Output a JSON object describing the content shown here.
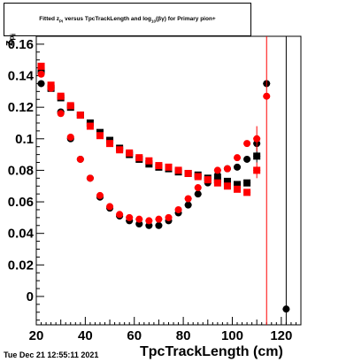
{
  "title": {
    "pre": "Fitted  z",
    "sub1": "Pi",
    "mid": "  versus TpcTrackLength and log",
    "sub2": "10",
    "post": "(βγ) for Primary pion+"
  },
  "footer": "Tue Dec 21 12:55:11 2021",
  "chart_data": {
    "type": "scatter",
    "xlabel": "TpcTrackLength (cm)",
    "ylabel_main": "z",
    "ylabel_sub": "Pi",
    "xlim": [
      20,
      128
    ],
    "ylim": [
      -0.018,
      0.165
    ],
    "xticks": [
      20,
      40,
      60,
      80,
      100,
      120
    ],
    "xtick_labels": [
      "20",
      "40",
      "60",
      "80",
      "100",
      "120"
    ],
    "yticks": [
      0,
      0.02,
      0.04,
      0.06,
      0.08,
      0.1,
      0.12,
      0.14,
      0.16
    ],
    "ytick_labels": [
      "0",
      "0.02",
      "0.04",
      "0.06",
      "0.08",
      "0.1",
      "0.12",
      "0.14",
      "0.16"
    ],
    "series": [
      {
        "color": "#000000",
        "marker": "square",
        "points": [
          {
            "x": 22,
            "y": 0.143,
            "err": 0.002
          },
          {
            "x": 26,
            "y": 0.132,
            "err": 0.002
          },
          {
            "x": 30,
            "y": 0.126,
            "err": 0.001
          },
          {
            "x": 34,
            "y": 0.12,
            "err": 0.001
          },
          {
            "x": 38,
            "y": 0.115,
            "err": 0.001
          },
          {
            "x": 42,
            "y": 0.11,
            "err": 0.001
          },
          {
            "x": 46,
            "y": 0.104,
            "err": 0.001
          },
          {
            "x": 50,
            "y": 0.099,
            "err": 0.001
          },
          {
            "x": 54,
            "y": 0.094,
            "err": 0.001
          },
          {
            "x": 58,
            "y": 0.09,
            "err": 0.001
          },
          {
            "x": 62,
            "y": 0.087,
            "err": 0.001
          },
          {
            "x": 66,
            "y": 0.084,
            "err": 0.001
          },
          {
            "x": 70,
            "y": 0.082,
            "err": 0.001
          },
          {
            "x": 74,
            "y": 0.081,
            "err": 0.001
          },
          {
            "x": 78,
            "y": 0.079,
            "err": 0.001
          },
          {
            "x": 82,
            "y": 0.078,
            "err": 0.001
          },
          {
            "x": 86,
            "y": 0.077,
            "err": 0.001
          },
          {
            "x": 90,
            "y": 0.075,
            "err": 0.001
          },
          {
            "x": 94,
            "y": 0.074,
            "err": 0.001
          },
          {
            "x": 98,
            "y": 0.073,
            "err": 0.001
          },
          {
            "x": 102,
            "y": 0.071,
            "err": 0.001
          },
          {
            "x": 106,
            "y": 0.072,
            "err": 0.002
          },
          {
            "x": 110,
            "y": 0.089,
            "err": 0.004
          }
        ]
      },
      {
        "color": "#000000",
        "marker": "circle",
        "points": [
          {
            "x": 22,
            "y": 0.135,
            "err": 0.002
          },
          {
            "x": 26,
            "y": 0.133,
            "err": 0.002
          },
          {
            "x": 30,
            "y": 0.117,
            "err": 0.001
          },
          {
            "x": 34,
            "y": 0.1,
            "err": 0.001
          },
          {
            "x": 38,
            "y": 0.087,
            "err": 0.001
          },
          {
            "x": 42,
            "y": 0.075,
            "err": 0.001
          },
          {
            "x": 46,
            "y": 0.063,
            "err": 0.001
          },
          {
            "x": 50,
            "y": 0.056,
            "err": 0.001
          },
          {
            "x": 54,
            "y": 0.051,
            "err": 0.001
          },
          {
            "x": 58,
            "y": 0.048,
            "err": 0.001
          },
          {
            "x": 62,
            "y": 0.046,
            "err": 0.001
          },
          {
            "x": 66,
            "y": 0.045,
            "err": 0.001
          },
          {
            "x": 70,
            "y": 0.045,
            "err": 0.001
          },
          {
            "x": 74,
            "y": 0.048,
            "err": 0.001
          },
          {
            "x": 78,
            "y": 0.053,
            "err": 0.001
          },
          {
            "x": 82,
            "y": 0.058,
            "err": 0.001
          },
          {
            "x": 86,
            "y": 0.065,
            "err": 0.001
          },
          {
            "x": 90,
            "y": 0.072,
            "err": 0.001
          },
          {
            "x": 94,
            "y": 0.077,
            "err": 0.001
          },
          {
            "x": 98,
            "y": 0.081,
            "err": 0.001
          },
          {
            "x": 102,
            "y": 0.082,
            "err": 0.002
          },
          {
            "x": 106,
            "y": 0.087,
            "err": 0.002
          },
          {
            "x": 110,
            "y": 0.097,
            "err": 0.004
          },
          {
            "x": 114,
            "y": 0.135,
            "err": 0.002
          },
          {
            "x": 122,
            "y": -0.008,
            "err": 0.175
          }
        ]
      },
      {
        "color": "#ff0000",
        "marker": "square",
        "points": [
          {
            "x": 22,
            "y": 0.146,
            "err": 0.002
          },
          {
            "x": 26,
            "y": 0.134,
            "err": 0.002
          },
          {
            "x": 30,
            "y": 0.127,
            "err": 0.001
          },
          {
            "x": 34,
            "y": 0.121,
            "err": 0.001
          },
          {
            "x": 38,
            "y": 0.115,
            "err": 0.001
          },
          {
            "x": 42,
            "y": 0.108,
            "err": 0.001
          },
          {
            "x": 46,
            "y": 0.102,
            "err": 0.001
          },
          {
            "x": 50,
            "y": 0.097,
            "err": 0.001
          },
          {
            "x": 54,
            "y": 0.093,
            "err": 0.001
          },
          {
            "x": 58,
            "y": 0.091,
            "err": 0.001
          },
          {
            "x": 62,
            "y": 0.088,
            "err": 0.001
          },
          {
            "x": 66,
            "y": 0.086,
            "err": 0.001
          },
          {
            "x": 70,
            "y": 0.083,
            "err": 0.001
          },
          {
            "x": 74,
            "y": 0.082,
            "err": 0.001
          },
          {
            "x": 78,
            "y": 0.08,
            "err": 0.001
          },
          {
            "x": 82,
            "y": 0.078,
            "err": 0.001
          },
          {
            "x": 86,
            "y": 0.076,
            "err": 0.001
          },
          {
            "x": 90,
            "y": 0.074,
            "err": 0.001
          },
          {
            "x": 94,
            "y": 0.072,
            "err": 0.001
          },
          {
            "x": 98,
            "y": 0.07,
            "err": 0.001
          },
          {
            "x": 102,
            "y": 0.068,
            "err": 0.002
          },
          {
            "x": 106,
            "y": 0.066,
            "err": 0.002
          },
          {
            "x": 110,
            "y": 0.08,
            "err": 0.005
          }
        ]
      },
      {
        "color": "#ff0000",
        "marker": "circle",
        "points": [
          {
            "x": 22,
            "y": 0.141,
            "err": 0.002
          },
          {
            "x": 26,
            "y": 0.132,
            "err": 0.002
          },
          {
            "x": 30,
            "y": 0.116,
            "err": 0.001
          },
          {
            "x": 34,
            "y": 0.101,
            "err": 0.001
          },
          {
            "x": 38,
            "y": 0.087,
            "err": 0.001
          },
          {
            "x": 42,
            "y": 0.075,
            "err": 0.001
          },
          {
            "x": 46,
            "y": 0.064,
            "err": 0.001
          },
          {
            "x": 50,
            "y": 0.057,
            "err": 0.001
          },
          {
            "x": 54,
            "y": 0.052,
            "err": 0.001
          },
          {
            "x": 58,
            "y": 0.05,
            "err": 0.001
          },
          {
            "x": 62,
            "y": 0.049,
            "err": 0.001
          },
          {
            "x": 66,
            "y": 0.048,
            "err": 0.001
          },
          {
            "x": 70,
            "y": 0.049,
            "err": 0.001
          },
          {
            "x": 74,
            "y": 0.05,
            "err": 0.001
          },
          {
            "x": 78,
            "y": 0.055,
            "err": 0.001
          },
          {
            "x": 82,
            "y": 0.062,
            "err": 0.001
          },
          {
            "x": 86,
            "y": 0.069,
            "err": 0.001
          },
          {
            "x": 90,
            "y": 0.074,
            "err": 0.001
          },
          {
            "x": 94,
            "y": 0.08,
            "err": 0.001
          },
          {
            "x": 98,
            "y": 0.081,
            "err": 0.001
          },
          {
            "x": 102,
            "y": 0.088,
            "err": 0.002
          },
          {
            "x": 106,
            "y": 0.097,
            "err": 0.002
          },
          {
            "x": 110,
            "y": 0.1,
            "err": 0.008
          },
          {
            "x": 114,
            "y": 0.127,
            "err": 0.16
          }
        ]
      }
    ]
  }
}
